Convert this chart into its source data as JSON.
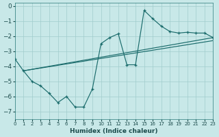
{
  "xlabel": "Humidex (Indice chaleur)",
  "bg_color": "#c8e8e8",
  "grid_color": "#a0cccc",
  "line_color": "#1a6b6b",
  "xlim": [
    0,
    23
  ],
  "ylim": [
    -7.5,
    0.2
  ],
  "xticks": [
    0,
    1,
    2,
    3,
    4,
    5,
    6,
    7,
    8,
    9,
    10,
    11,
    12,
    13,
    14,
    15,
    16,
    17,
    18,
    19,
    20,
    21,
    22,
    23
  ],
  "yticks": [
    0,
    -1,
    -2,
    -3,
    -4,
    -5,
    -6,
    -7
  ],
  "line1_x": [
    0,
    1,
    2,
    3,
    4,
    5,
    6,
    7,
    8,
    9,
    10,
    11,
    12,
    13,
    14,
    15,
    16,
    17,
    18,
    19,
    20,
    21,
    22,
    23
  ],
  "line1_y": [
    -3.5,
    -4.3,
    -5.0,
    -5.3,
    -5.8,
    -6.4,
    -6.0,
    -6.7,
    -6.7,
    -5.5,
    -2.5,
    -2.1,
    -1.85,
    -3.9,
    -3.9,
    -0.3,
    -0.85,
    -1.35,
    -1.7,
    -1.8,
    -1.75,
    -1.8,
    -1.8,
    -2.1
  ],
  "line2_x": [
    1,
    23
  ],
  "line2_y": [
    -4.3,
    -2.1
  ],
  "line3_x": [
    1,
    23
  ],
  "line3_y": [
    -4.3,
    -2.3
  ]
}
